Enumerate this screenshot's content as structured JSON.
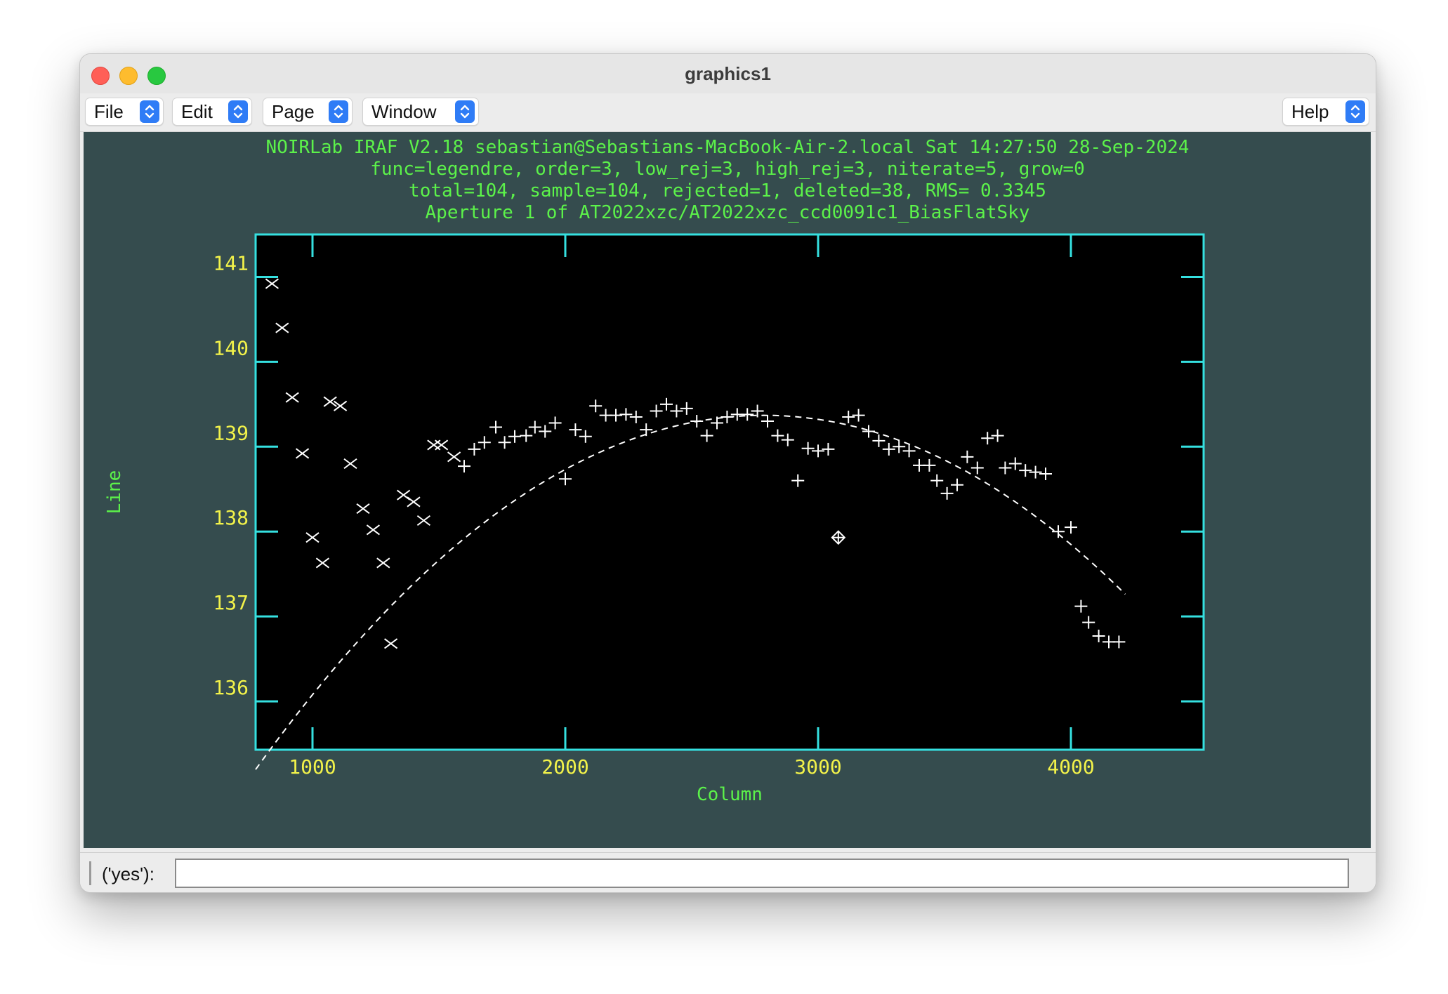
{
  "window": {
    "title": "graphics1"
  },
  "menubar": {
    "left_menus": [
      {
        "label": "File"
      },
      {
        "label": "Edit"
      },
      {
        "label": "Page"
      },
      {
        "label": "Window"
      }
    ],
    "help": {
      "label": "Help"
    }
  },
  "colors": {
    "graphics_background": "#354c4e",
    "plot_background": "#000000",
    "frame": "#35e0e0",
    "header_text": "#5cf24a",
    "tick_label": "#f2f24a",
    "marker": "#ffffff",
    "window_close": "#ff5f57",
    "window_minimize": "#febc2e",
    "window_maximize": "#28c840",
    "menu_chevron": "#2f7cf6"
  },
  "plot_header": [
    "NOIRLab IRAF V2.18 sebastian@Sebastians-MacBook-Air-2.local Sat 14:27:50 28-Sep-2024",
    "func=legendre, order=3, low_rej=3, high_rej=3, niterate=5, grow=0",
    "total=104, sample=104, rejected=1, deleted=38, RMS= 0.3345",
    "Aperture 1 of AT2022xzc/AT2022xzc_ccd0091c1_BiasFlatSky"
  ],
  "chart_data": {
    "type": "scatter",
    "xlabel": "Column",
    "ylabel": "Line",
    "xlim": [
      775,
      4525
    ],
    "ylim": [
      135.43,
      141.5
    ],
    "x_ticks": [
      1000,
      2000,
      3000,
      4000
    ],
    "y_ticks": [
      136,
      137,
      138,
      139,
      140,
      141
    ],
    "grid": false,
    "series": [
      {
        "marker": "plus",
        "points": [
          [
            1600,
            138.77
          ],
          [
            1640,
            138.97
          ],
          [
            1680,
            139.05
          ],
          [
            1725,
            139.23
          ],
          [
            1760,
            139.05
          ],
          [
            1800,
            139.12
          ],
          [
            1845,
            139.13
          ],
          [
            1880,
            139.23
          ],
          [
            1920,
            139.18
          ],
          [
            1960,
            139.28
          ],
          [
            2000,
            138.62
          ],
          [
            2040,
            139.2
          ],
          [
            2080,
            139.12
          ],
          [
            2120,
            139.48
          ],
          [
            2160,
            139.37
          ],
          [
            2200,
            139.37
          ],
          [
            2240,
            139.38
          ],
          [
            2280,
            139.35
          ],
          [
            2320,
            139.2
          ],
          [
            2360,
            139.42
          ],
          [
            2400,
            139.5
          ],
          [
            2440,
            139.42
          ],
          [
            2480,
            139.45
          ],
          [
            2520,
            139.3
          ],
          [
            2560,
            139.13
          ],
          [
            2600,
            139.28
          ],
          [
            2640,
            139.35
          ],
          [
            2680,
            139.38
          ],
          [
            2720,
            139.38
          ],
          [
            2760,
            139.42
          ],
          [
            2800,
            139.3
          ],
          [
            2840,
            139.13
          ],
          [
            2880,
            139.08
          ],
          [
            2920,
            138.6
          ],
          [
            2960,
            138.98
          ],
          [
            3000,
            138.95
          ],
          [
            3040,
            138.97
          ],
          [
            3120,
            139.35
          ],
          [
            3160,
            139.37
          ],
          [
            3200,
            139.18
          ],
          [
            3240,
            139.07
          ],
          [
            3280,
            138.97
          ],
          [
            3320,
            139
          ],
          [
            3360,
            138.95
          ],
          [
            3400,
            138.78
          ],
          [
            3440,
            138.78
          ],
          [
            3470,
            138.6
          ],
          [
            3510,
            138.45
          ],
          [
            3550,
            138.55
          ],
          [
            3590,
            138.88
          ],
          [
            3630,
            138.75
          ],
          [
            3670,
            139.1
          ],
          [
            3710,
            139.13
          ],
          [
            3740,
            138.75
          ],
          [
            3780,
            138.8
          ],
          [
            3820,
            138.72
          ],
          [
            3860,
            138.7
          ],
          [
            3900,
            138.68
          ],
          [
            3950,
            138
          ],
          [
            4000,
            138.05
          ],
          [
            4040,
            137.12
          ],
          [
            4070,
            136.93
          ],
          [
            4110,
            136.77
          ],
          [
            4150,
            136.7
          ],
          [
            4190,
            136.7
          ]
        ]
      },
      {
        "marker": "cross",
        "points": [
          [
            840,
            140.92
          ],
          [
            880,
            140.4
          ],
          [
            920,
            139.58
          ],
          [
            960,
            138.92
          ],
          [
            1000,
            137.93
          ],
          [
            1040,
            137.63
          ],
          [
            1070,
            139.53
          ],
          [
            1110,
            139.48
          ],
          [
            1150,
            138.8
          ],
          [
            1200,
            138.27
          ],
          [
            1240,
            138.02
          ],
          [
            1280,
            137.63
          ],
          [
            1310,
            136.68
          ],
          [
            1360,
            138.43
          ],
          [
            1400,
            138.35
          ],
          [
            1440,
            138.13
          ],
          [
            1480,
            139.02
          ],
          [
            1510,
            139.02
          ],
          [
            1560,
            138.88
          ]
        ]
      },
      {
        "marker": "diamond-plus",
        "points": [
          [
            3080,
            137.93
          ]
        ]
      }
    ],
    "fit_curve": {
      "style": "dashed",
      "coefficients": [
        -1.032e-06,
        0.00575,
        131.36
      ],
      "x_range": [
        775,
        4220
      ]
    }
  },
  "prompt": {
    "label": "('yes'):",
    "value": ""
  }
}
